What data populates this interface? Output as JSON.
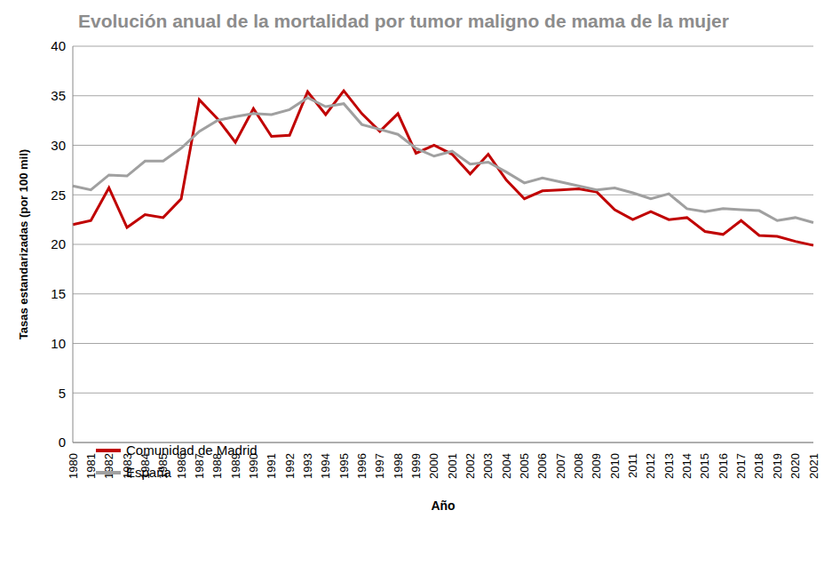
{
  "chart_data": {
    "type": "line",
    "title": "Evolución anual de la mortalidad por tumor maligno de mama de la mujer",
    "x_label": "Año",
    "y_label": "Tasas estandarizadas (por 100 mil)",
    "categories": [
      "1980",
      "1981",
      "1982",
      "1983",
      "1984",
      "1985",
      "1986",
      "1987",
      "1988",
      "1989",
      "1990",
      "1991",
      "1992",
      "1993",
      "1994",
      "1995",
      "1996",
      "1997",
      "1998",
      "1999",
      "2000",
      "2001",
      "2002",
      "2003",
      "2004",
      "2005",
      "2006",
      "2007",
      "2008",
      "2009",
      "2010",
      "2011",
      "2012",
      "2013",
      "2014",
      "2015",
      "2016",
      "2017",
      "2018",
      "2019",
      "2020",
      "2021"
    ],
    "series": [
      {
        "name": "Comunidad de Madrid",
        "color": "#c00000",
        "values": [
          22.0,
          22.4,
          25.7,
          21.7,
          23.0,
          22.7,
          24.6,
          34.6,
          32.7,
          30.3,
          33.7,
          30.9,
          31.0,
          35.4,
          33.1,
          35.5,
          33.2,
          31.4,
          33.2,
          29.2,
          30.0,
          29.1,
          27.1,
          29.1,
          26.5,
          24.6,
          25.4,
          25.5,
          25.6,
          25.3,
          23.5,
          22.5,
          23.3,
          22.5,
          22.7,
          21.3,
          21.0,
          22.4,
          20.9,
          20.8,
          20.3,
          19.9
        ]
      },
      {
        "name": "España",
        "color": "#a0a0a0",
        "values": [
          25.9,
          25.5,
          27.0,
          26.9,
          28.4,
          28.4,
          29.7,
          31.4,
          32.5,
          32.9,
          33.2,
          33.1,
          33.6,
          34.8,
          33.9,
          34.2,
          32.1,
          31.6,
          31.1,
          29.7,
          28.9,
          29.4,
          28.1,
          28.3,
          27.3,
          26.2,
          26.7,
          26.3,
          25.9,
          25.5,
          25.7,
          25.2,
          24.6,
          25.1,
          23.6,
          23.3,
          23.6,
          23.5,
          23.4,
          22.4,
          22.7,
          22.2
        ]
      }
    ],
    "ylim": [
      0,
      40
    ],
    "yticks": [
      0,
      5,
      10,
      15,
      20,
      25,
      30,
      35,
      40
    ],
    "grid": true,
    "legend": "lower left"
  }
}
